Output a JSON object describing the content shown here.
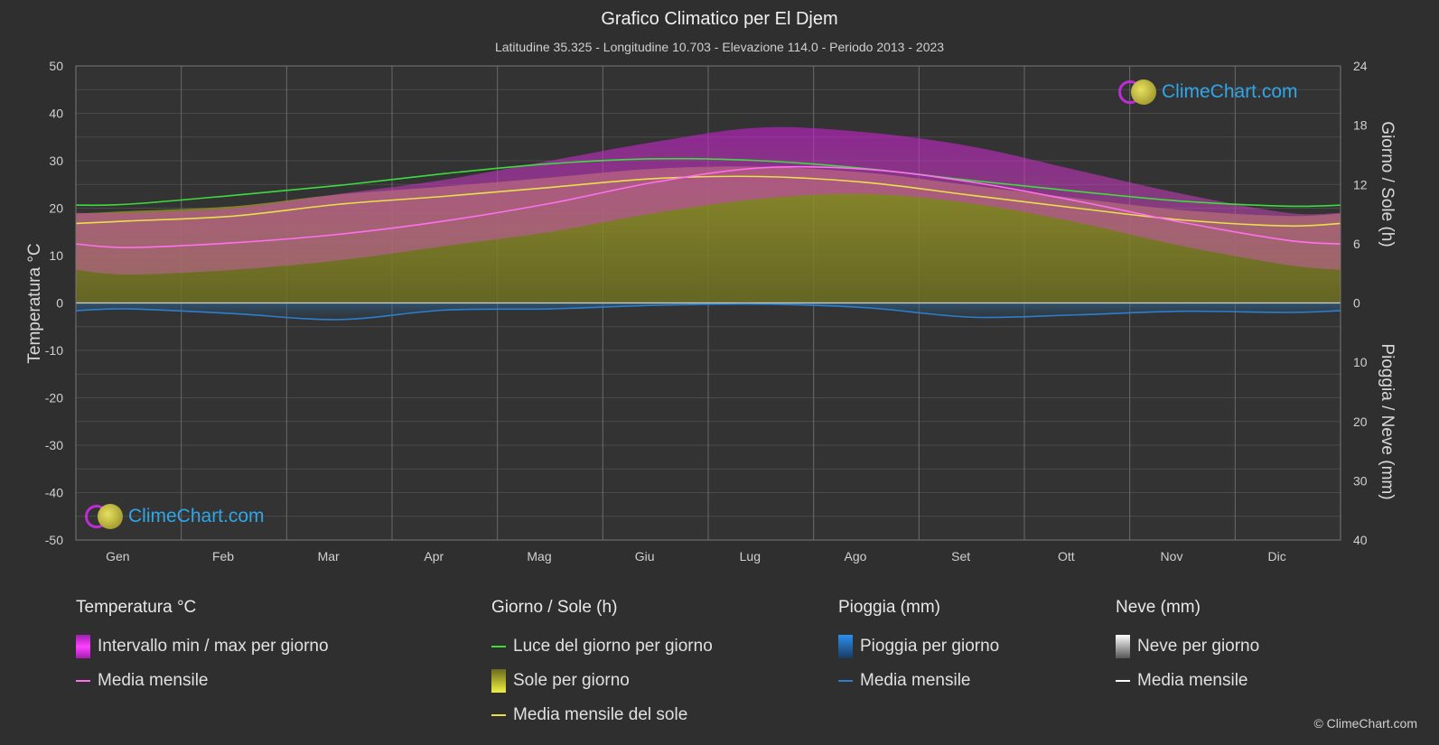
{
  "title": "Grafico Climatico per El Djem",
  "subtitle": "Latitudine 35.325 - Longitudine 10.703 - Elevazione 114.0 - Periodo 2013 - 2023",
  "logo_text": "ClimeChart.com",
  "copyright": "© ClimeChart.com",
  "chart_data": {
    "type": "line",
    "categories": [
      "Gen",
      "Feb",
      "Mar",
      "Apr",
      "Mag",
      "Giu",
      "Lug",
      "Ago",
      "Set",
      "Ott",
      "Nov",
      "Dic"
    ],
    "left_axis": {
      "label": "Temperatura °C",
      "range": [
        -50,
        50
      ],
      "ticks": [
        50,
        40,
        30,
        20,
        10,
        0,
        -10,
        -20,
        -30,
        -40,
        -50
      ]
    },
    "right_axis_top": {
      "label": "Giorno / Sole (h)",
      "range": [
        0,
        24
      ],
      "ticks": [
        24,
        18,
        12,
        6,
        0
      ]
    },
    "right_axis_bottom": {
      "label": "Pioggia / Neve (mm)",
      "range": [
        0,
        40
      ],
      "ticks": [
        0,
        10,
        20,
        30,
        40
      ]
    },
    "series": [
      {
        "name": "Luce del giorno per giorno",
        "axis": "hours",
        "color": "#3ddc3d",
        "values": [
          10.0,
          10.9,
          11.9,
          13.1,
          14.1,
          14.6,
          14.4,
          13.6,
          12.4,
          11.3,
          10.3,
          9.8
        ]
      },
      {
        "name": "Media mensile del sole",
        "axis": "hours",
        "color": "#e8e04a",
        "values": [
          8.3,
          8.8,
          10.0,
          10.8,
          11.7,
          12.6,
          12.8,
          12.2,
          10.9,
          9.6,
          8.4,
          7.8
        ]
      },
      {
        "name": "Media mensile",
        "axis": "temperature",
        "color": "#ff70f0",
        "values": [
          11.7,
          12.7,
          14.5,
          17.3,
          21.0,
          25.5,
          28.5,
          28.2,
          25.5,
          21.5,
          17.0,
          13.2
        ]
      },
      {
        "name": "Intervallo min / max per giorno",
        "axis": "temperature",
        "color": "#d020d8",
        "min": [
          6,
          7,
          9,
          12,
          15,
          19,
          22,
          23,
          21,
          17,
          12,
          8
        ],
        "max": [
          19,
          20,
          23,
          26,
          30,
          34,
          37,
          36,
          33,
          28,
          23,
          19
        ]
      },
      {
        "name": "Pioggia media mensile",
        "axis": "precip",
        "color": "#2a7fd0",
        "values": [
          1.0,
          1.8,
          2.8,
          1.2,
          1.0,
          0.4,
          0.2,
          0.8,
          2.4,
          2.0,
          1.4,
          1.6
        ]
      }
    ]
  },
  "legend": {
    "temp": {
      "head": "Temperatura °C",
      "items": [
        "Intervallo min / max per giorno",
        "Media mensile"
      ]
    },
    "sun": {
      "head": "Giorno / Sole (h)",
      "items": [
        "Luce del giorno per giorno",
        "Sole per giorno",
        "Media mensile del sole"
      ]
    },
    "rain": {
      "head": "Pioggia (mm)",
      "items": [
        "Pioggia per giorno",
        "Media mensile"
      ]
    },
    "snow": {
      "head": "Neve (mm)",
      "items": [
        "Neve per giorno",
        "Media mensile"
      ]
    }
  },
  "colors": {
    "background": "#2f2f2f",
    "daylight": "#3ddc3d",
    "sun": "#e8e04a",
    "temp_range": "#d020d8",
    "temp_mean": "#ff70f0",
    "rain": "#2a7fd0",
    "snow": "#ffffff"
  }
}
